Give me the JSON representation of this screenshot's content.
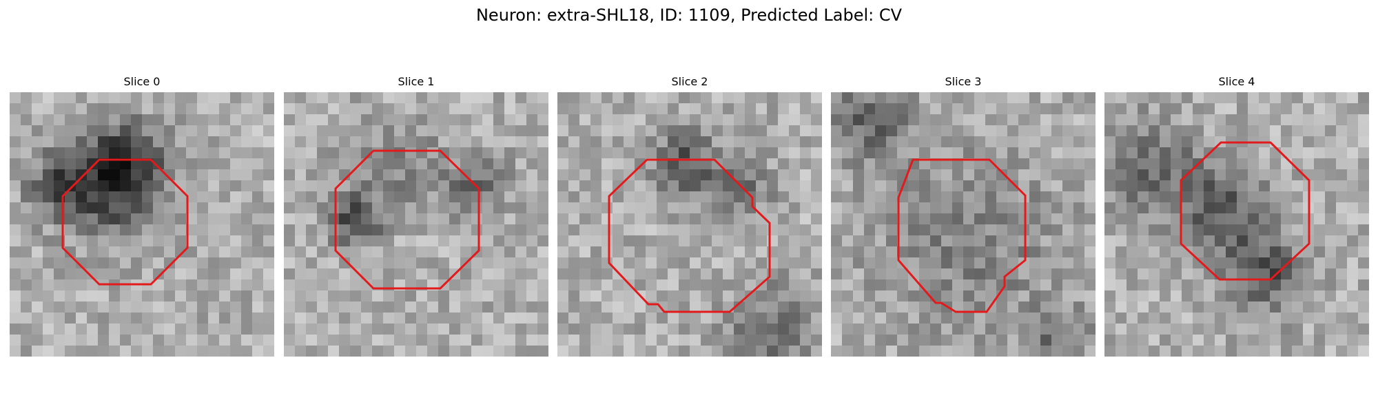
{
  "figure": {
    "title": "Neuron: extra-SHL18, ID: 1109, Predicted Label: CV"
  },
  "panels": [
    {
      "title": "Slice 0"
    },
    {
      "title": "Slice 1"
    },
    {
      "title": "Slice 2"
    },
    {
      "title": "Slice 3"
    },
    {
      "title": "Slice 4"
    }
  ],
  "colors": {
    "contour": "#e31a1c",
    "background": "#ffffff"
  }
}
